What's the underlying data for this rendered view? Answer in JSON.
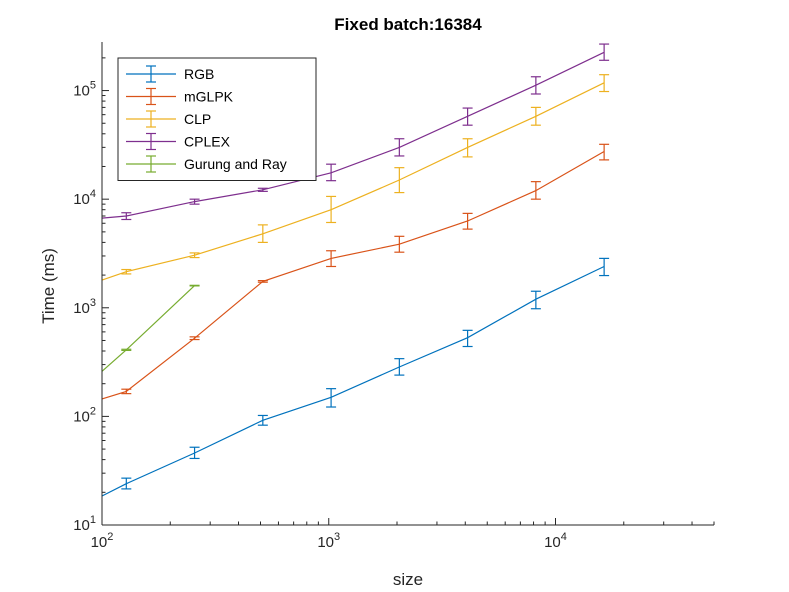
{
  "chart_data": {
    "type": "line",
    "title": "Fixed batch:16384",
    "xlabel": "size",
    "ylabel": "Time (ms)",
    "xscale": "log",
    "yscale": "log",
    "xlim": [
      100,
      50000
    ],
    "ylim": [
      10,
      280000
    ],
    "grid": false,
    "legend_position": "top-left",
    "x_ticks": [
      {
        "value": 100,
        "base": "10",
        "exp": "2"
      },
      {
        "value": 1000,
        "base": "10",
        "exp": "3"
      },
      {
        "value": 10000,
        "base": "10",
        "exp": "4"
      }
    ],
    "y_ticks": [
      {
        "value": 10,
        "base": "10",
        "exp": "1"
      },
      {
        "value": 100,
        "base": "10",
        "exp": "2"
      },
      {
        "value": 1000,
        "base": "10",
        "exp": "3"
      },
      {
        "value": 10000,
        "base": "10",
        "exp": "4"
      },
      {
        "value": 100000,
        "base": "10",
        "exp": "5"
      }
    ],
    "series": [
      {
        "name": "RGB",
        "color": "#0072BD",
        "points": [
          {
            "x": 100,
            "y": 18.5
          },
          {
            "x": 128,
            "y": 24,
            "lo": 21.5,
            "hi": 27
          },
          {
            "x": 256,
            "y": 46,
            "lo": 41,
            "hi": 52
          },
          {
            "x": 512,
            "y": 92,
            "lo": 83,
            "hi": 102
          },
          {
            "x": 1024,
            "y": 150,
            "lo": 122,
            "hi": 180
          },
          {
            "x": 2048,
            "y": 285,
            "lo": 240,
            "hi": 340
          },
          {
            "x": 4096,
            "y": 530,
            "lo": 440,
            "hi": 620
          },
          {
            "x": 8192,
            "y": 1200,
            "lo": 980,
            "hi": 1420
          },
          {
            "x": 16384,
            "y": 2400,
            "lo": 1980,
            "hi": 2850
          }
        ]
      },
      {
        "name": "mGLPK",
        "color": "#D95319",
        "points": [
          {
            "x": 100,
            "y": 145
          },
          {
            "x": 128,
            "y": 170,
            "lo": 162,
            "hi": 178
          },
          {
            "x": 256,
            "y": 525,
            "lo": 510,
            "hi": 540
          },
          {
            "x": 512,
            "y": 1750,
            "lo": 1720,
            "hi": 1780
          },
          {
            "x": 1024,
            "y": 2850,
            "lo": 2400,
            "hi": 3350
          },
          {
            "x": 2048,
            "y": 3850,
            "lo": 3250,
            "hi": 4550
          },
          {
            "x": 4096,
            "y": 6300,
            "lo": 5300,
            "hi": 7400
          },
          {
            "x": 8192,
            "y": 12000,
            "lo": 10000,
            "hi": 14500
          },
          {
            "x": 16384,
            "y": 27500,
            "lo": 23000,
            "hi": 32000
          }
        ]
      },
      {
        "name": "CLP",
        "color": "#EDB120",
        "points": [
          {
            "x": 100,
            "y": 1800
          },
          {
            "x": 128,
            "y": 2150,
            "lo": 2050,
            "hi": 2250
          },
          {
            "x": 256,
            "y": 3050,
            "lo": 2900,
            "hi": 3200
          },
          {
            "x": 512,
            "y": 4800,
            "lo": 4000,
            "hi": 5800
          },
          {
            "x": 1024,
            "y": 8000,
            "lo": 6100,
            "hi": 10600
          },
          {
            "x": 2048,
            "y": 15000,
            "lo": 11500,
            "hi": 19500
          },
          {
            "x": 4096,
            "y": 30000,
            "lo": 24500,
            "hi": 36000
          },
          {
            "x": 8192,
            "y": 58000,
            "lo": 48000,
            "hi": 70000
          },
          {
            "x": 16384,
            "y": 118000,
            "lo": 98000,
            "hi": 140000
          }
        ]
      },
      {
        "name": "CPLEX",
        "color": "#7E2F8E",
        "points": [
          {
            "x": 100,
            "y": 6700
          },
          {
            "x": 128,
            "y": 7000,
            "lo": 6500,
            "hi": 7500
          },
          {
            "x": 256,
            "y": 9500,
            "lo": 9000,
            "hi": 10000
          },
          {
            "x": 512,
            "y": 12200,
            "lo": 11800,
            "hi": 12600
          },
          {
            "x": 1024,
            "y": 17500,
            "lo": 14800,
            "hi": 21000
          },
          {
            "x": 2048,
            "y": 30000,
            "lo": 25000,
            "hi": 36000
          },
          {
            "x": 4096,
            "y": 58000,
            "lo": 48000,
            "hi": 69000
          },
          {
            "x": 8192,
            "y": 112000,
            "lo": 93000,
            "hi": 134000
          },
          {
            "x": 16384,
            "y": 225000,
            "lo": 190000,
            "hi": 268000
          }
        ]
      },
      {
        "name": "Gurung and Ray",
        "color": "#77AC30",
        "points": [
          {
            "x": 100,
            "y": 260
          },
          {
            "x": 128,
            "y": 410,
            "lo": 405,
            "hi": 415
          },
          {
            "x": 256,
            "y": 1600,
            "lo": 1590,
            "hi": 1610
          }
        ]
      }
    ]
  }
}
